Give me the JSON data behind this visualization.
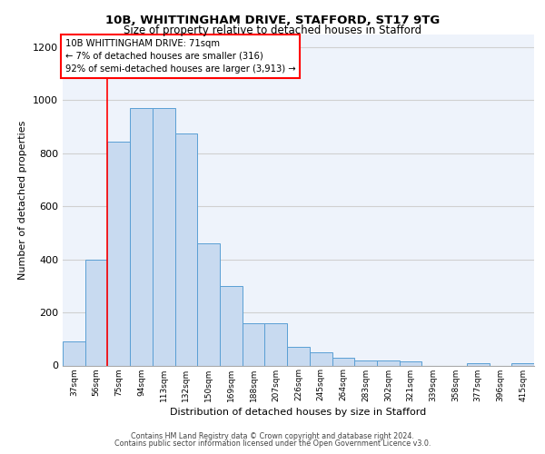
{
  "title1": "10B, WHITTINGHAM DRIVE, STAFFORD, ST17 9TG",
  "title2": "Size of property relative to detached houses in Stafford",
  "xlabel": "Distribution of detached houses by size in Stafford",
  "ylabel": "Number of detached properties",
  "categories": [
    "37sqm",
    "56sqm",
    "75sqm",
    "94sqm",
    "113sqm",
    "132sqm",
    "150sqm",
    "169sqm",
    "188sqm",
    "207sqm",
    "226sqm",
    "245sqm",
    "264sqm",
    "283sqm",
    "302sqm",
    "321sqm",
    "339sqm",
    "358sqm",
    "377sqm",
    "396sqm",
    "415sqm"
  ],
  "values": [
    90,
    400,
    845,
    970,
    970,
    875,
    460,
    300,
    160,
    160,
    70,
    50,
    30,
    20,
    20,
    15,
    0,
    0,
    10,
    0,
    10
  ],
  "bar_color": "#c8daf0",
  "bar_edge_color": "#5a9fd4",
  "annotation_text": "10B WHITTINGHAM DRIVE: 71sqm\n← 7% of detached houses are smaller (316)\n92% of semi-detached houses are larger (3,913) →",
  "ylim": [
    0,
    1250
  ],
  "yticks": [
    0,
    200,
    400,
    600,
    800,
    1000,
    1200
  ],
  "grid_color": "#d0d0d0",
  "bg_color": "#eef3fb",
  "footer1": "Contains HM Land Registry data © Crown copyright and database right 2024.",
  "footer2": "Contains public sector information licensed under the Open Government Licence v3.0."
}
